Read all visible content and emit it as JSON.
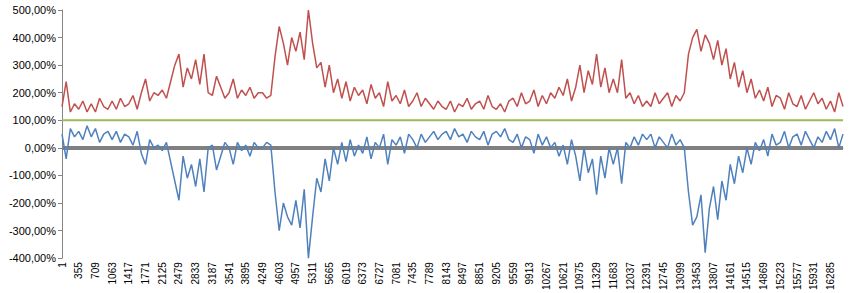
{
  "chart_data": {
    "type": "line",
    "grid": false,
    "categories": [
      "1",
      null,
      null,
      null,
      "355",
      null,
      null,
      null,
      "709",
      null,
      null,
      null,
      "1063",
      null,
      null,
      null,
      "1417",
      null,
      null,
      null,
      "1771",
      null,
      null,
      null,
      "2125",
      null,
      null,
      null,
      "2479",
      null,
      null,
      null,
      "2833",
      null,
      null,
      null,
      "3187",
      null,
      null,
      null,
      "3541",
      null,
      null,
      null,
      "3895",
      null,
      null,
      null,
      "4249",
      null,
      null,
      null,
      "4603",
      null,
      null,
      null,
      "4957",
      null,
      null,
      null,
      "5311",
      null,
      null,
      null,
      "5665",
      null,
      null,
      null,
      "6019",
      null,
      null,
      null,
      "6373",
      null,
      null,
      null,
      "6727",
      null,
      null,
      null,
      "7081",
      null,
      null,
      null,
      "7435",
      null,
      null,
      null,
      "7789",
      null,
      null,
      null,
      "8143",
      null,
      null,
      null,
      "8497",
      null,
      null,
      null,
      "8851",
      null,
      null,
      null,
      "9205",
      null,
      null,
      null,
      "9559",
      null,
      null,
      null,
      "9913",
      null,
      null,
      null,
      "10267",
      null,
      null,
      null,
      "10621",
      null,
      null,
      null,
      "10975",
      null,
      null,
      null,
      "11329",
      null,
      null,
      null,
      "11683",
      null,
      null,
      null,
      "12037",
      null,
      null,
      null,
      "12391",
      null,
      null,
      null,
      "12745",
      null,
      null,
      null,
      "13099",
      null,
      null,
      null,
      "13453",
      null,
      null,
      null,
      "13807",
      null,
      null,
      null,
      "14161",
      null,
      null,
      null,
      "14515",
      null,
      null,
      null,
      "14869",
      null,
      null,
      null,
      "15223",
      null,
      null,
      null,
      "15577",
      null,
      null,
      null,
      "15931",
      null,
      null,
      null,
      "16285",
      null,
      null,
      null
    ],
    "ylim": [
      -400,
      500
    ],
    "yticks": [
      {
        "value": -400,
        "label": "-400,00%"
      },
      {
        "value": -300,
        "label": "-300,00%"
      },
      {
        "value": -200,
        "label": "-200,00%"
      },
      {
        "value": -100,
        "label": "-100,00%"
      },
      {
        "value": 0,
        "label": "0,00%"
      },
      {
        "value": 100,
        "label": "100,00%"
      },
      {
        "value": 200,
        "label": "200,00%"
      },
      {
        "value": 300,
        "label": "300,00%"
      },
      {
        "value": 400,
        "label": "400,00%"
      },
      {
        "value": 500,
        "label": "500,00%"
      }
    ],
    "series": [
      {
        "color": "#808080",
        "values": [
          0,
          0,
          0,
          0,
          0,
          0,
          0,
          0,
          0,
          0,
          0,
          0,
          0,
          0,
          0,
          0,
          0,
          0,
          0,
          0,
          0,
          0,
          0,
          0,
          0,
          0,
          0,
          0,
          0,
          0,
          0,
          0,
          0,
          0,
          0,
          0,
          0,
          0,
          0,
          0,
          0,
          0,
          0,
          0,
          0,
          0,
          0,
          0,
          0,
          0,
          0,
          0,
          0,
          0,
          0,
          0,
          0,
          0,
          0,
          0,
          0,
          0,
          0,
          0,
          0,
          0,
          0,
          0,
          0,
          0,
          0,
          0,
          0,
          0,
          0,
          0,
          0,
          0,
          0,
          0,
          0,
          0,
          0,
          0,
          0,
          0,
          0,
          0,
          0,
          0,
          0,
          0,
          0,
          0,
          0,
          0,
          0,
          0,
          0,
          0,
          0,
          0,
          0,
          0,
          0,
          0,
          0,
          0,
          0,
          0,
          0,
          0,
          0,
          0,
          0,
          0,
          0,
          0,
          0,
          0,
          0,
          0,
          0,
          0,
          0,
          0,
          0,
          0,
          0,
          0,
          0,
          0,
          0,
          0,
          0,
          0,
          0,
          0,
          0,
          0,
          0,
          0,
          0,
          0,
          0,
          0,
          0,
          0,
          0,
          0,
          0,
          0,
          0,
          0,
          0,
          0,
          0,
          0,
          0,
          0,
          0,
          0,
          0,
          0,
          0,
          0,
          0,
          0,
          0,
          0,
          0,
          0,
          0,
          0,
          0,
          0,
          0,
          0,
          0,
          0,
          0,
          0,
          0,
          0,
          0,
          0,
          0,
          0
        ]
      },
      {
        "color": "#4f81bd",
        "values": [
          50,
          -40,
          70,
          40,
          60,
          30,
          80,
          40,
          70,
          20,
          50,
          60,
          30,
          60,
          20,
          50,
          40,
          10,
          60,
          -20,
          -60,
          30,
          0,
          10,
          -10,
          20,
          -50,
          -120,
          -190,
          -30,
          -110,
          -60,
          -140,
          -40,
          -160,
          0,
          10,
          -80,
          -30,
          20,
          0,
          -60,
          20,
          -10,
          10,
          -30,
          20,
          0,
          0,
          20,
          10,
          -160,
          -300,
          -200,
          -250,
          -280,
          -190,
          -290,
          -150,
          -400,
          -250,
          -110,
          -160,
          -40,
          -120,
          0,
          -60,
          20,
          -50,
          30,
          -30,
          10,
          -20,
          40,
          -40,
          20,
          0,
          50,
          -60,
          30,
          10,
          40,
          -20,
          50,
          30,
          0,
          50,
          20,
          40,
          60,
          30,
          50,
          60,
          30,
          70,
          40,
          50,
          20,
          60,
          40,
          30,
          60,
          10,
          50,
          60,
          40,
          70,
          30,
          20,
          50,
          0,
          40,
          30,
          -20,
          50,
          10,
          40,
          0,
          20,
          -30,
          10,
          -60,
          30,
          -30,
          -120,
          0,
          -90,
          -40,
          -170,
          -30,
          -110,
          0,
          -60,
          0,
          -130,
          20,
          0,
          40,
          10,
          50,
          30,
          50,
          0,
          40,
          20,
          0,
          50,
          10,
          30,
          0,
          -160,
          -280,
          -250,
          -170,
          -380,
          -220,
          -140,
          -260,
          -120,
          -190,
          -60,
          -130,
          -30,
          -90,
          0,
          -60,
          20,
          -10,
          30,
          -30,
          50,
          10,
          20,
          60,
          0,
          40,
          50,
          10,
          60,
          30,
          0,
          40,
          20,
          60,
          30,
          70,
          0,
          50
        ]
      },
      {
        "color": "#c0504d",
        "values": [
          150,
          240,
          130,
          160,
          140,
          170,
          130,
          160,
          130,
          180,
          150,
          140,
          170,
          140,
          180,
          150,
          160,
          190,
          140,
          200,
          250,
          170,
          200,
          190,
          210,
          180,
          240,
          300,
          340,
          220,
          290,
          250,
          320,
          230,
          340,
          200,
          190,
          260,
          220,
          180,
          200,
          250,
          180,
          210,
          190,
          220,
          180,
          200,
          200,
          180,
          190,
          330,
          440,
          380,
          300,
          400,
          350,
          420,
          320,
          500,
          380,
          290,
          310,
          220,
          300,
          200,
          250,
          180,
          240,
          170,
          220,
          190,
          210,
          160,
          230,
          180,
          200,
          150,
          240,
          170,
          190,
          160,
          210,
          150,
          170,
          200,
          150,
          180,
          160,
          140,
          170,
          150,
          140,
          170,
          130,
          160,
          150,
          180,
          140,
          160,
          170,
          140,
          190,
          150,
          140,
          160,
          130,
          170,
          180,
          150,
          200,
          160,
          170,
          210,
          150,
          190,
          160,
          200,
          180,
          220,
          190,
          250,
          170,
          220,
          300,
          200,
          280,
          230,
          340,
          220,
          290,
          200,
          250,
          200,
          320,
          180,
          200,
          160,
          190,
          150,
          170,
          150,
          200,
          160,
          180,
          200,
          150,
          190,
          170,
          200,
          340,
          400,
          430,
          350,
          410,
          380,
          320,
          390,
          300,
          360,
          250,
          310,
          220,
          280,
          200,
          250,
          180,
          210,
          170,
          220,
          150,
          190,
          180,
          140,
          200,
          160,
          150,
          190,
          140,
          170,
          200,
          160,
          180,
          140,
          170,
          130,
          200,
          150
        ]
      },
      {
        "color": "#9bbb59",
        "values": [
          100,
          100,
          100,
          100,
          100,
          100,
          100,
          100,
          100,
          100,
          100,
          100,
          100,
          100,
          100,
          100,
          100,
          100,
          100,
          100,
          100,
          100,
          100,
          100,
          100,
          100,
          100,
          100,
          100,
          100,
          100,
          100,
          100,
          100,
          100,
          100,
          100,
          100,
          100,
          100,
          100,
          100,
          100,
          100,
          100,
          100,
          100,
          100,
          100,
          100,
          100,
          100,
          100,
          100,
          100,
          100,
          100,
          100,
          100,
          100,
          100,
          100,
          100,
          100,
          100,
          100,
          100,
          100,
          100,
          100,
          100,
          100,
          100,
          100,
          100,
          100,
          100,
          100,
          100,
          100,
          100,
          100,
          100,
          100,
          100,
          100,
          100,
          100,
          100,
          100,
          100,
          100,
          100,
          100,
          100,
          100,
          100,
          100,
          100,
          100,
          100,
          100,
          100,
          100,
          100,
          100,
          100,
          100,
          100,
          100,
          100,
          100,
          100,
          100,
          100,
          100,
          100,
          100,
          100,
          100,
          100,
          100,
          100,
          100,
          100,
          100,
          100,
          100,
          100,
          100,
          100,
          100,
          100,
          100,
          100,
          100,
          100,
          100,
          100,
          100,
          100,
          100,
          100,
          100,
          100,
          100,
          100,
          100,
          100,
          100,
          100,
          100,
          100,
          100,
          100,
          100,
          100,
          100,
          100,
          100,
          100,
          100,
          100,
          100,
          100,
          100,
          100,
          100,
          100,
          100,
          100,
          100,
          100,
          100,
          100,
          100,
          100,
          100,
          100,
          100,
          100,
          100,
          100,
          100,
          100,
          100,
          100,
          100
        ]
      }
    ]
  }
}
